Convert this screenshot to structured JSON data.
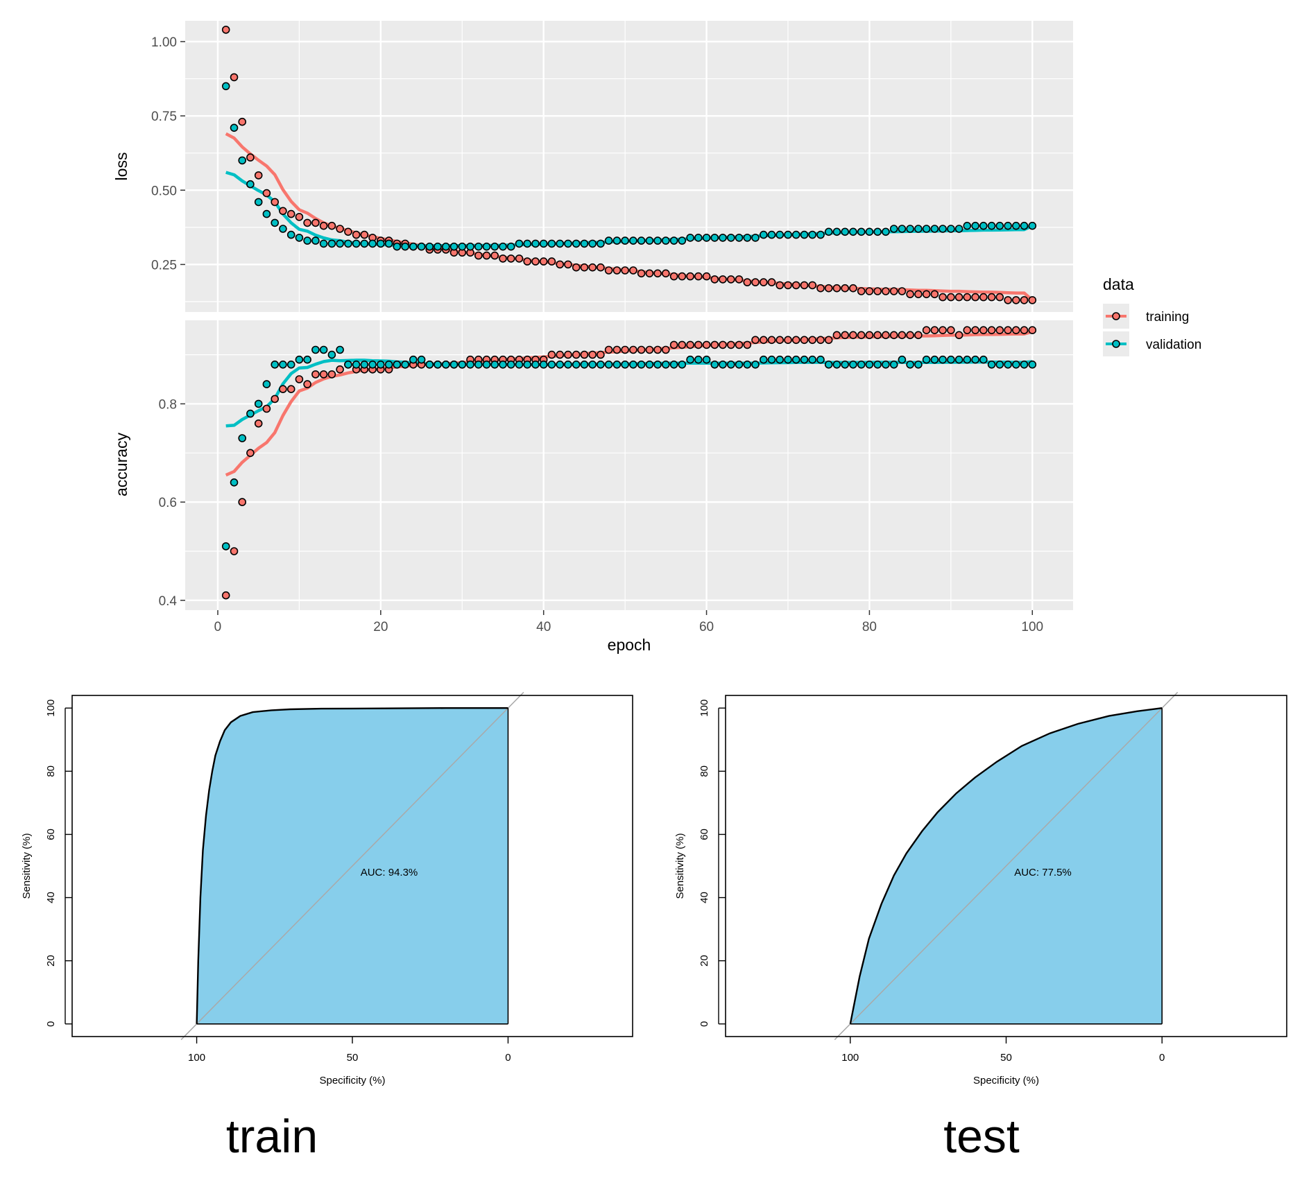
{
  "colors": {
    "training": "#F8766D",
    "validation": "#00BFC4",
    "panel_bg": "#EBEBEB",
    "roc_fill": "#87CEEB"
  },
  "chart_data": [
    {
      "type": "scatter",
      "xlabel": "epoch",
      "ylabel": "loss",
      "xlim": [
        -4,
        105
      ],
      "ylim": [
        0.09,
        1.07
      ],
      "x_ticks": [
        0,
        20,
        40,
        60,
        80,
        100
      ],
      "y_ticks": [
        0.25,
        0.5,
        0.75,
        1.0
      ],
      "y_tick_labels": [
        "0.25",
        "0.50",
        "0.75",
        "1.00"
      ],
      "grid": true,
      "legend": {
        "title": "data",
        "position": "right",
        "entries": [
          "training",
          "validation"
        ]
      },
      "series": [
        {
          "name": "training",
          "color": "#F8766D",
          "points_desc": "epochs 1-100",
          "values": [
            1.04,
            0.88,
            0.73,
            0.61,
            0.55,
            0.49,
            0.46,
            0.43,
            0.42,
            0.41,
            0.39,
            0.39,
            0.38,
            0.38,
            0.37,
            0.36,
            0.35,
            0.35,
            0.34,
            0.33,
            0.33,
            0.32,
            0.32,
            0.31,
            0.31,
            0.3,
            0.3,
            0.3,
            0.29,
            0.29,
            0.29,
            0.28,
            0.28,
            0.28,
            0.27,
            0.27,
            0.27,
            0.26,
            0.26,
            0.26,
            0.26,
            0.25,
            0.25,
            0.24,
            0.24,
            0.24,
            0.24,
            0.23,
            0.23,
            0.23,
            0.23,
            0.22,
            0.22,
            0.22,
            0.22,
            0.21,
            0.21,
            0.21,
            0.21,
            0.21,
            0.2,
            0.2,
            0.2,
            0.2,
            0.19,
            0.19,
            0.19,
            0.19,
            0.18,
            0.18,
            0.18,
            0.18,
            0.18,
            0.17,
            0.17,
            0.17,
            0.17,
            0.17,
            0.16,
            0.16,
            0.16,
            0.16,
            0.16,
            0.16,
            0.15,
            0.15,
            0.15,
            0.15,
            0.14,
            0.14,
            0.14,
            0.14,
            0.14,
            0.14,
            0.14,
            0.14,
            0.13,
            0.13,
            0.13,
            0.13
          ],
          "trend": {
            "start": 0.69,
            "min_epoch": 100,
            "end": 0.13
          }
        },
        {
          "name": "validation",
          "color": "#00BFC4",
          "values": [
            0.85,
            0.71,
            0.6,
            0.52,
            0.46,
            0.42,
            0.39,
            0.37,
            0.35,
            0.34,
            0.33,
            0.33,
            0.32,
            0.32,
            0.32,
            0.32,
            0.32,
            0.32,
            0.32,
            0.32,
            0.32,
            0.31,
            0.31,
            0.31,
            0.31,
            0.31,
            0.31,
            0.31,
            0.31,
            0.31,
            0.31,
            0.31,
            0.31,
            0.31,
            0.31,
            0.31,
            0.32,
            0.32,
            0.32,
            0.32,
            0.32,
            0.32,
            0.32,
            0.32,
            0.32,
            0.32,
            0.32,
            0.33,
            0.33,
            0.33,
            0.33,
            0.33,
            0.33,
            0.33,
            0.33,
            0.33,
            0.33,
            0.34,
            0.34,
            0.34,
            0.34,
            0.34,
            0.34,
            0.34,
            0.34,
            0.34,
            0.35,
            0.35,
            0.35,
            0.35,
            0.35,
            0.35,
            0.35,
            0.35,
            0.36,
            0.36,
            0.36,
            0.36,
            0.36,
            0.36,
            0.36,
            0.36,
            0.37,
            0.37,
            0.37,
            0.37,
            0.37,
            0.37,
            0.37,
            0.37,
            0.37,
            0.38,
            0.38,
            0.38,
            0.38,
            0.38,
            0.38,
            0.38,
            0.38,
            0.38
          ],
          "trend": {
            "start": 0.56,
            "end": 0.38
          }
        }
      ]
    },
    {
      "type": "scatter",
      "xlabel": "epoch",
      "ylabel": "accuracy",
      "xlim": [
        -4,
        105
      ],
      "ylim": [
        0.38,
        0.97
      ],
      "x_ticks": [
        0,
        20,
        40,
        60,
        80,
        100
      ],
      "y_ticks": [
        0.4,
        0.6,
        0.8
      ],
      "y_tick_labels": [
        "0.4",
        "0.6",
        "0.8"
      ],
      "grid": true,
      "series": [
        {
          "name": "training",
          "color": "#F8766D",
          "values": [
            0.41,
            0.5,
            0.6,
            0.7,
            0.76,
            0.79,
            0.81,
            0.83,
            0.83,
            0.85,
            0.84,
            0.86,
            0.86,
            0.86,
            0.87,
            0.88,
            0.87,
            0.87,
            0.87,
            0.87,
            0.87,
            0.88,
            0.88,
            0.88,
            0.88,
            0.88,
            0.88,
            0.88,
            0.88,
            0.88,
            0.89,
            0.89,
            0.89,
            0.89,
            0.89,
            0.89,
            0.89,
            0.89,
            0.89,
            0.89,
            0.9,
            0.9,
            0.9,
            0.9,
            0.9,
            0.9,
            0.9,
            0.91,
            0.91,
            0.91,
            0.91,
            0.91,
            0.91,
            0.91,
            0.91,
            0.92,
            0.92,
            0.92,
            0.92,
            0.92,
            0.92,
            0.92,
            0.92,
            0.92,
            0.92,
            0.93,
            0.93,
            0.93,
            0.93,
            0.93,
            0.93,
            0.93,
            0.93,
            0.93,
            0.93,
            0.94,
            0.94,
            0.94,
            0.94,
            0.94,
            0.94,
            0.94,
            0.94,
            0.94,
            0.94,
            0.94,
            0.95,
            0.95,
            0.95,
            0.95,
            0.94,
            0.95,
            0.95,
            0.95,
            0.95,
            0.95,
            0.95,
            0.95,
            0.95,
            0.95
          ],
          "trend": {
            "start": 0.655,
            "end": 0.947
          }
        },
        {
          "name": "validation",
          "color": "#00BFC4",
          "values": [
            0.51,
            0.64,
            0.73,
            0.78,
            0.8,
            0.84,
            0.88,
            0.88,
            0.88,
            0.89,
            0.89,
            0.91,
            0.91,
            0.9,
            0.91,
            0.88,
            0.88,
            0.88,
            0.88,
            0.88,
            0.88,
            0.88,
            0.88,
            0.89,
            0.89,
            0.88,
            0.88,
            0.88,
            0.88,
            0.88,
            0.88,
            0.88,
            0.88,
            0.88,
            0.88,
            0.88,
            0.88,
            0.88,
            0.88,
            0.88,
            0.88,
            0.88,
            0.88,
            0.88,
            0.88,
            0.88,
            0.88,
            0.88,
            0.88,
            0.88,
            0.88,
            0.88,
            0.88,
            0.88,
            0.88,
            0.88,
            0.88,
            0.89,
            0.89,
            0.89,
            0.88,
            0.88,
            0.88,
            0.88,
            0.88,
            0.88,
            0.89,
            0.89,
            0.89,
            0.89,
            0.89,
            0.89,
            0.89,
            0.89,
            0.88,
            0.88,
            0.88,
            0.88,
            0.88,
            0.88,
            0.88,
            0.88,
            0.88,
            0.89,
            0.88,
            0.88,
            0.89,
            0.89,
            0.89,
            0.89,
            0.89,
            0.89,
            0.89,
            0.89,
            0.88,
            0.88,
            0.88,
            0.88,
            0.88,
            0.88
          ],
          "trend": {
            "start": 0.755,
            "end": 0.886
          }
        }
      ]
    },
    {
      "type": "area",
      "title": "train",
      "xlabel": "Specificity (%)",
      "ylabel": "Sensitivity (%)",
      "x_ticks": [
        100,
        50,
        0
      ],
      "y_ticks": [
        0,
        20,
        40,
        60,
        80,
        100
      ],
      "xlim": [
        140,
        -40
      ],
      "ylim": [
        -4,
        104
      ],
      "annotation": "AUC: 94.3%",
      "curve_specificity": [
        100,
        99.5,
        98.8,
        98,
        97,
        96,
        95,
        94,
        92.5,
        91,
        89,
        86,
        82,
        76,
        70,
        60,
        40,
        20,
        0
      ],
      "curve_sensitivity": [
        0,
        20,
        40,
        55,
        66,
        74,
        80,
        85,
        89.5,
        93,
        95.5,
        97.5,
        98.7,
        99.3,
        99.6,
        99.8,
        99.9,
        100,
        100
      ]
    },
    {
      "type": "area",
      "title": "test",
      "xlabel": "Specificity (%)",
      "ylabel": "Sensitivity (%)",
      "x_ticks": [
        100,
        50,
        0
      ],
      "y_ticks": [
        0,
        20,
        40,
        60,
        80,
        100
      ],
      "xlim": [
        140,
        -40
      ],
      "ylim": [
        -4,
        104
      ],
      "annotation": "AUC: 77.5%",
      "curve_specificity": [
        100,
        97,
        94,
        90,
        86,
        82,
        77,
        72,
        66,
        60,
        53,
        45,
        36,
        27,
        17,
        8,
        0
      ],
      "curve_sensitivity": [
        0,
        15,
        27,
        38,
        47,
        54,
        61,
        67,
        73,
        78,
        83,
        88,
        92,
        95,
        97.5,
        99,
        100
      ]
    }
  ],
  "panels": {
    "loss_ylabel": "loss",
    "acc_ylabel": "accuracy",
    "epoch_label": "epoch",
    "legend_title": "data",
    "legend_training": "training",
    "legend_validation": "validation"
  },
  "captions": {
    "train": "train",
    "test": "test"
  }
}
